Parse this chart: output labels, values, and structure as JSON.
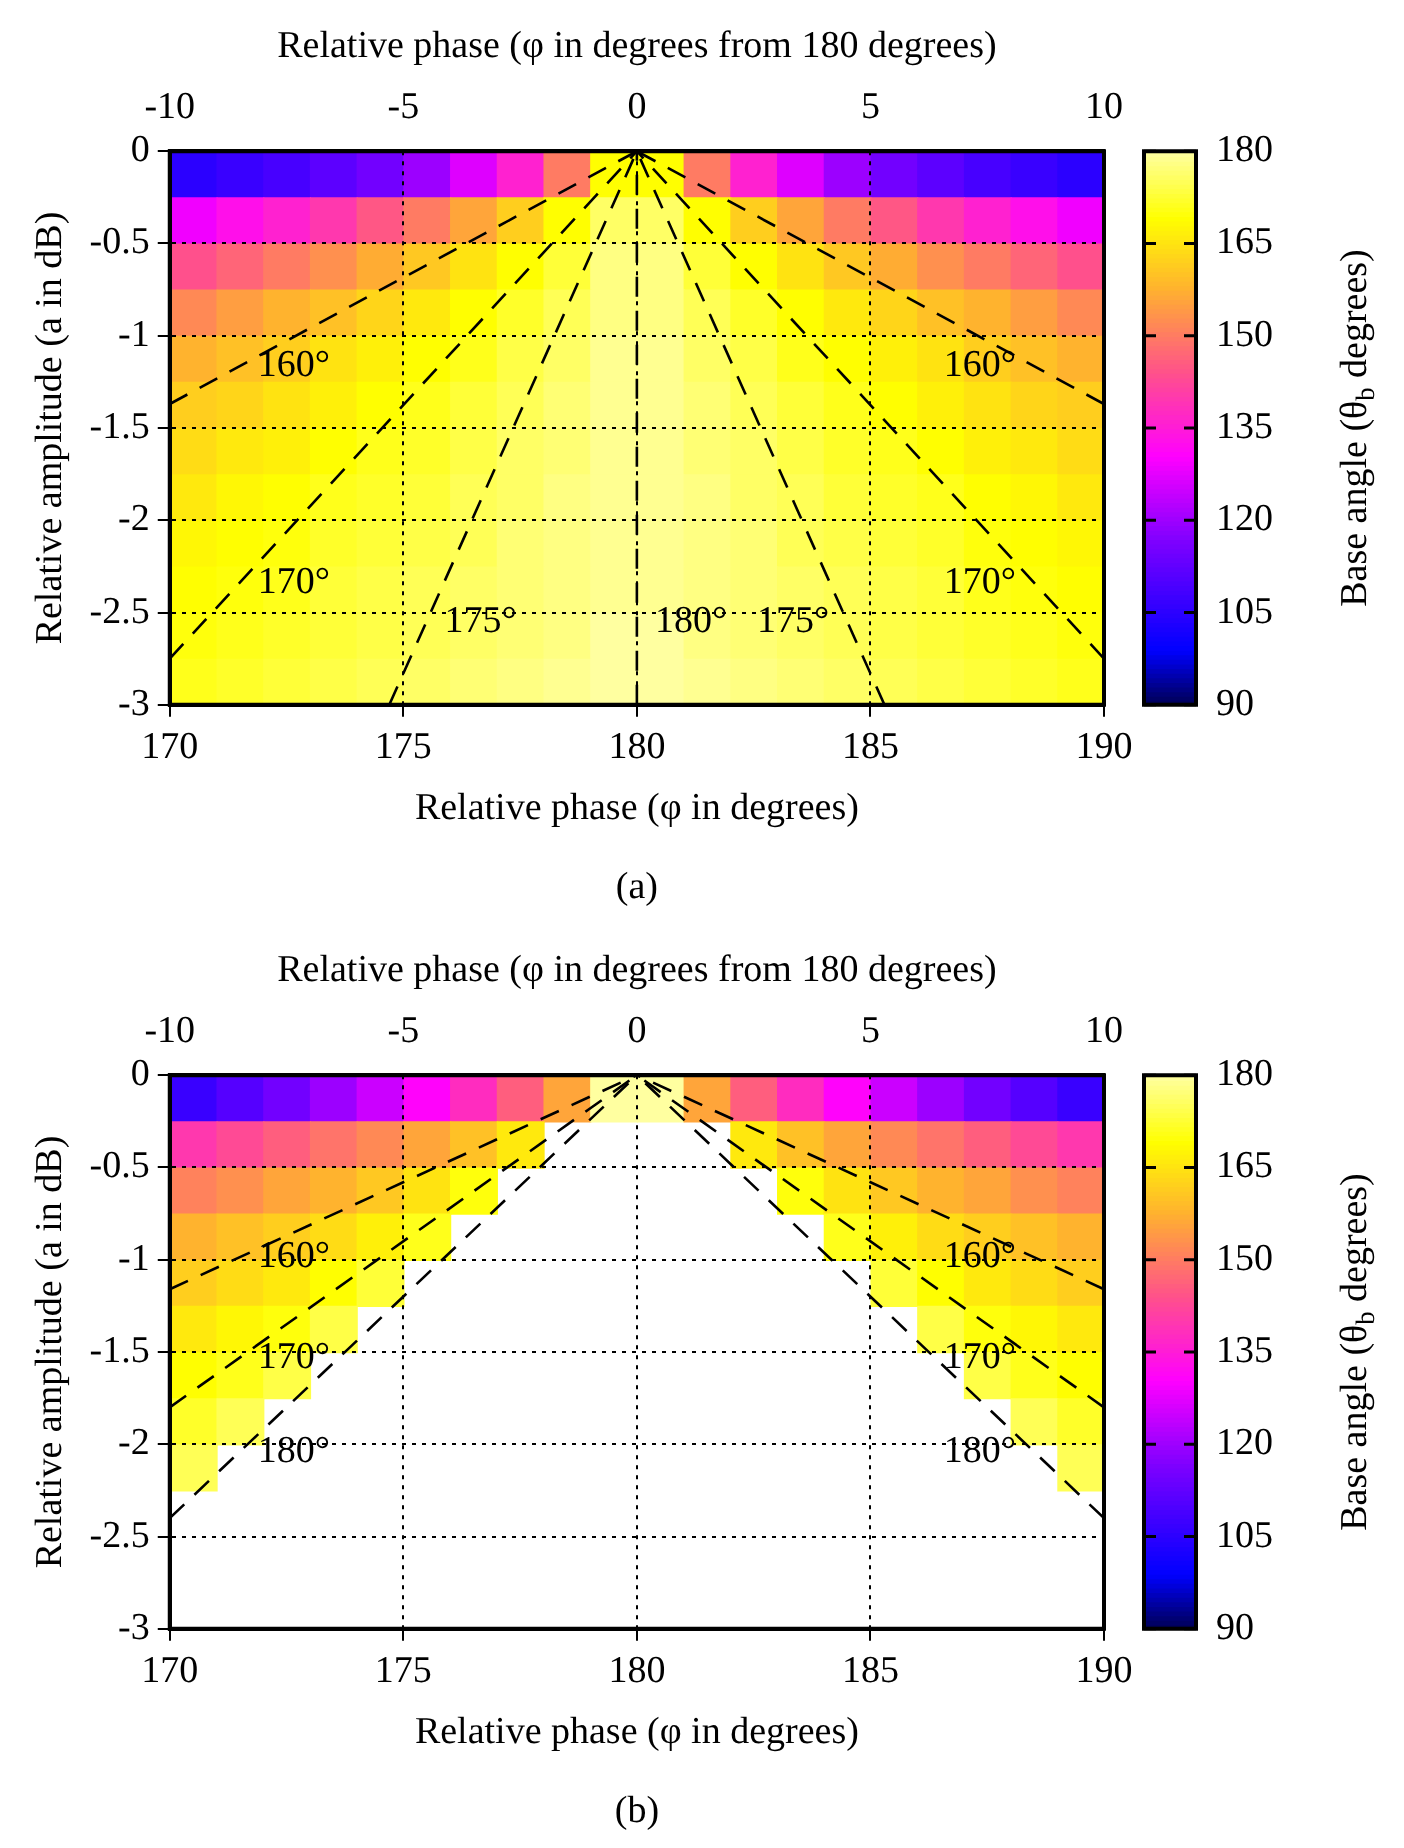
{
  "chart_data": [
    {
      "type": "heatmap",
      "xlabel": "Relative phase (φ in degrees)",
      "x2label": "Relative phase (φ in degrees from 180 degrees)",
      "ylabel": "Relative amplitude (a in dB)",
      "clabel": "Base angle (θ$_{b}$ degrees)",
      "x": [
        170.5,
        171.5,
        172.5,
        173.5,
        174.5,
        175.5,
        176.5,
        177.5,
        178.5,
        179.5,
        180.5,
        181.5,
        182.5,
        183.5,
        184.5,
        185.5,
        186.5,
        187.5,
        188.5,
        189.5
      ],
      "y": [
        -0.125,
        -0.375,
        -0.625,
        -0.875,
        -1.125,
        -1.375,
        -1.625,
        -1.875,
        -2.125,
        -2.375,
        -2.625,
        -2.875
      ],
      "cells": [
        [
          105,
          107,
          109,
          112,
          115,
          120,
          127,
          136,
          150,
          169,
          169,
          150,
          136,
          127,
          120,
          115,
          112,
          109,
          107,
          105
        ],
        [
          129,
          133,
          136,
          140,
          145,
          150,
          156,
          162,
          169,
          176,
          176,
          169,
          162,
          156,
          150,
          145,
          140,
          136,
          133,
          129
        ],
        [
          144,
          147,
          150,
          153,
          157,
          161,
          165,
          169,
          173,
          178,
          178,
          173,
          169,
          165,
          161,
          157,
          153,
          150,
          147,
          144
        ],
        [
          152,
          155,
          158,
          160,
          163,
          166,
          169,
          172,
          175,
          178,
          178,
          175,
          172,
          169,
          166,
          163,
          160,
          158,
          155,
          152
        ],
        [
          158,
          160,
          162,
          165,
          167,
          169,
          171,
          174,
          176,
          179,
          179,
          176,
          174,
          171,
          169,
          167,
          165,
          162,
          160,
          158
        ],
        [
          162,
          163,
          165,
          167,
          169,
          171,
          173,
          175,
          177,
          179,
          179,
          177,
          175,
          173,
          171,
          169,
          167,
          165,
          163,
          162
        ],
        [
          164,
          166,
          167,
          169,
          171,
          172,
          174,
          176,
          177,
          179,
          179,
          177,
          176,
          174,
          172,
          171,
          169,
          167,
          166,
          164
        ],
        [
          166,
          168,
          169,
          171,
          172,
          173,
          175,
          176,
          178,
          179,
          179,
          178,
          176,
          175,
          173,
          172,
          171,
          169,
          168,
          166
        ],
        [
          168,
          169,
          170,
          172,
          173,
          174,
          175,
          177,
          178,
          179,
          179,
          178,
          177,
          175,
          174,
          173,
          172,
          170,
          169,
          168
        ],
        [
          169,
          170,
          171,
          173,
          174,
          175,
          176,
          177,
          178,
          179,
          179,
          178,
          177,
          176,
          175,
          174,
          173,
          171,
          170,
          169
        ],
        [
          170,
          171,
          172,
          173,
          174,
          175,
          176,
          177,
          178,
          180,
          180,
          178,
          177,
          176,
          175,
          174,
          173,
          172,
          171,
          170
        ],
        [
          171,
          172,
          173,
          174,
          175,
          176,
          177,
          178,
          179,
          180,
          180,
          179,
          178,
          177,
          176,
          175,
          174,
          173,
          172,
          171
        ]
      ],
      "clim": [
        90,
        180
      ],
      "cticks": [
        90,
        105,
        120,
        135,
        150,
        165,
        180
      ],
      "xlim": [
        170,
        190
      ],
      "xticks": [
        170,
        175,
        180,
        185,
        190
      ],
      "x2lim": [
        -10,
        10
      ],
      "x2ticks": [
        -10,
        -5,
        0,
        5,
        10
      ],
      "ylim": [
        -3,
        0
      ],
      "yticks": [
        -3,
        -2.5,
        -2,
        -1.5,
        -1,
        -0.5,
        0
      ],
      "grid": true,
      "line_style": "dashed",
      "marker": "none",
      "series": [
        {
          "type": "line",
          "name": "160°",
          "color": "#000000",
          "x": [
            170,
            180
          ],
          "values": [
            -1.37,
            0
          ]
        },
        {
          "type": "line",
          "name": "160°",
          "color": "#000000",
          "x": [
            190,
            180
          ],
          "values": [
            -1.37,
            0
          ]
        },
        {
          "type": "line",
          "name": "170°",
          "color": "#000000",
          "x": [
            170,
            180
          ],
          "values": [
            -2.75,
            0
          ]
        },
        {
          "type": "line",
          "name": "170°",
          "color": "#000000",
          "x": [
            190,
            180
          ],
          "values": [
            -2.75,
            0
          ]
        },
        {
          "type": "line",
          "name": "175°",
          "color": "#000000",
          "x": [
            174.7,
            180
          ],
          "values": [
            -3,
            0
          ]
        },
        {
          "type": "line",
          "name": "175°",
          "color": "#000000",
          "x": [
            185.3,
            180
          ],
          "values": [
            -3,
            0
          ]
        },
        {
          "type": "line",
          "name": "180°",
          "color": "#000000",
          "x": [
            180,
            180
          ],
          "values": [
            -3,
            0
          ]
        }
      ],
      "annotations": [
        "(a)"
      ]
    },
    {
      "type": "heatmap",
      "xlabel": "Relative phase (φ in degrees)",
      "x2label": "Relative phase (φ in degrees from 180 degrees)",
      "ylabel": "Relative amplitude (a in dB)",
      "clabel": "Base angle (θ$_{b}$ degrees)",
      "x": [
        170.5,
        171.5,
        172.5,
        173.5,
        174.5,
        175.5,
        176.5,
        177.5,
        178.5,
        179.5,
        180.5,
        181.5,
        182.5,
        183.5,
        184.5,
        185.5,
        186.5,
        187.5,
        188.5,
        189.5
      ],
      "y": [
        -0.125,
        -0.375,
        -0.625,
        -0.875,
        -1.125,
        -1.375,
        -1.625,
        -1.875,
        -2.125
      ],
      "cells": [
        [
          107,
          111,
          115,
          120,
          125,
          131,
          138,
          146,
          156,
          180,
          180,
          156,
          146,
          138,
          131,
          125,
          120,
          115,
          111,
          107
        ],
        [
          140,
          143,
          146,
          149,
          152,
          156,
          160,
          166,
          null,
          null,
          null,
          null,
          166,
          160,
          156,
          152,
          149,
          146,
          143,
          140
        ],
        [
          151,
          153,
          156,
          158,
          161,
          165,
          170,
          null,
          null,
          null,
          null,
          null,
          null,
          170,
          165,
          161,
          158,
          156,
          153,
          151
        ],
        [
          158,
          160,
          162,
          164,
          167,
          171,
          null,
          null,
          null,
          null,
          null,
          null,
          null,
          null,
          171,
          167,
          164,
          162,
          160,
          158
        ],
        [
          162,
          164,
          166,
          169,
          173,
          null,
          null,
          null,
          null,
          null,
          null,
          null,
          null,
          null,
          null,
          173,
          169,
          166,
          164,
          162
        ],
        [
          166,
          168,
          170,
          174,
          null,
          null,
          null,
          null,
          null,
          null,
          null,
          null,
          null,
          null,
          null,
          null,
          174,
          170,
          168,
          166
        ],
        [
          169,
          171,
          174,
          null,
          null,
          null,
          null,
          null,
          null,
          null,
          null,
          null,
          null,
          null,
          null,
          null,
          null,
          174,
          171,
          169
        ],
        [
          172,
          175,
          null,
          null,
          null,
          null,
          null,
          null,
          null,
          null,
          null,
          null,
          null,
          null,
          null,
          null,
          null,
          null,
          175,
          172
        ],
        [
          175,
          null,
          null,
          null,
          null,
          null,
          null,
          null,
          null,
          null,
          null,
          null,
          null,
          null,
          null,
          null,
          null,
          null,
          null,
          175
        ]
      ],
      "clim": [
        90,
        180
      ],
      "cticks": [
        90,
        105,
        120,
        135,
        150,
        165,
        180
      ],
      "xlim": [
        170,
        190
      ],
      "xticks": [
        170,
        175,
        180,
        185,
        190
      ],
      "x2lim": [
        -10,
        10
      ],
      "x2ticks": [
        -10,
        -5,
        0,
        5,
        10
      ],
      "ylim": [
        -3,
        0
      ],
      "yticks": [
        -3,
        -2.5,
        -2,
        -1.5,
        -1,
        -0.5,
        0
      ],
      "grid": true,
      "line_style": "dashed",
      "marker": "none",
      "series": [
        {
          "type": "line",
          "name": "160°",
          "color": "#000000",
          "x": [
            170,
            180
          ],
          "values": [
            -1.16,
            0
          ]
        },
        {
          "type": "line",
          "name": "160°",
          "color": "#000000",
          "x": [
            190,
            180
          ],
          "values": [
            -1.16,
            0
          ]
        },
        {
          "type": "line",
          "name": "170°",
          "color": "#000000",
          "x": [
            170,
            180
          ],
          "values": [
            -1.8,
            0
          ]
        },
        {
          "type": "line",
          "name": "170°",
          "color": "#000000",
          "x": [
            190,
            180
          ],
          "values": [
            -1.8,
            0
          ]
        },
        {
          "type": "line",
          "name": "180°",
          "color": "#000000",
          "x": [
            170,
            180
          ],
          "values": [
            -2.4,
            0
          ]
        },
        {
          "type": "line",
          "name": "180°",
          "color": "#000000",
          "x": [
            190,
            180
          ],
          "values": [
            -2.4,
            0
          ]
        }
      ],
      "annotations": [
        "(b)"
      ]
    }
  ]
}
